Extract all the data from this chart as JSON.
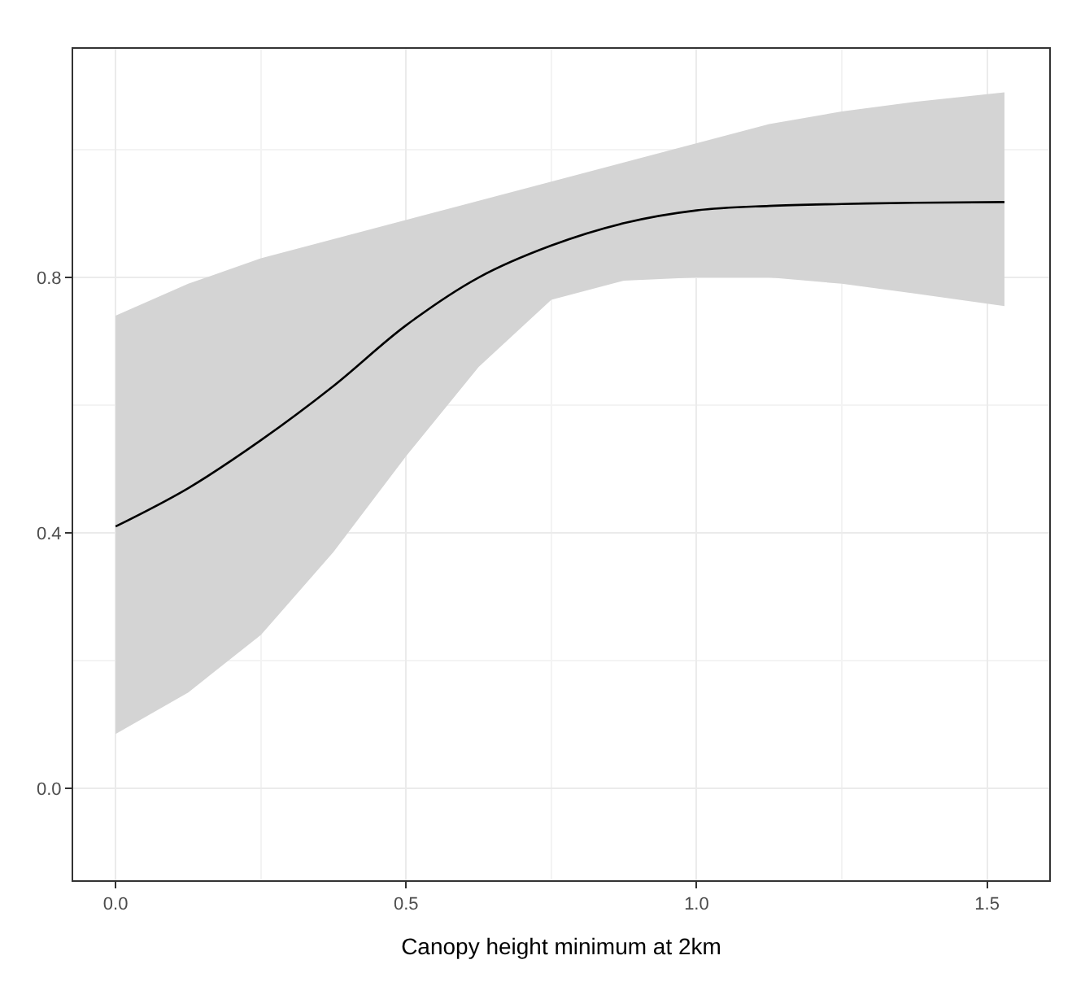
{
  "chart_data": {
    "type": "line",
    "xlabel": "Canopy height minimum at 2km",
    "x": [
      0,
      0.125,
      0.25,
      0.375,
      0.5,
      0.625,
      0.75,
      0.875,
      1.0,
      1.125,
      1.25,
      1.375,
      1.53
    ],
    "series": [
      {
        "color": "#000000",
        "values": [
          0.41,
          0.47,
          0.545,
          0.63,
          0.725,
          0.8,
          0.85,
          0.885,
          0.905,
          0.912,
          0.915,
          0.917,
          0.918
        ],
        "lower": [
          0.085,
          0.15,
          0.24,
          0.37,
          0.52,
          0.66,
          0.765,
          0.795,
          0.8,
          0.8,
          0.79,
          0.775,
          0.755
        ],
        "upper": [
          0.74,
          0.79,
          0.83,
          0.86,
          0.89,
          0.92,
          0.95,
          0.98,
          1.01,
          1.04,
          1.06,
          1.075,
          1.09
        ]
      }
    ],
    "xlim": [
      -0.073,
      1.607
    ],
    "ylim": [
      -0.144,
      1.158
    ],
    "xticks": [
      {
        "value": 0,
        "label": "0.0"
      },
      {
        "value": 0.5,
        "label": "0.5"
      },
      {
        "value": 1,
        "label": "1.0"
      },
      {
        "value": 1.5,
        "label": "1.5"
      }
    ],
    "yticks": [
      {
        "value": 0,
        "label": "0.0"
      },
      {
        "value": 0.4,
        "label": "0.4"
      },
      {
        "value": 0.8,
        "label": "0.8"
      }
    ],
    "grid": true,
    "marker": "none",
    "line_style": "solid"
  }
}
